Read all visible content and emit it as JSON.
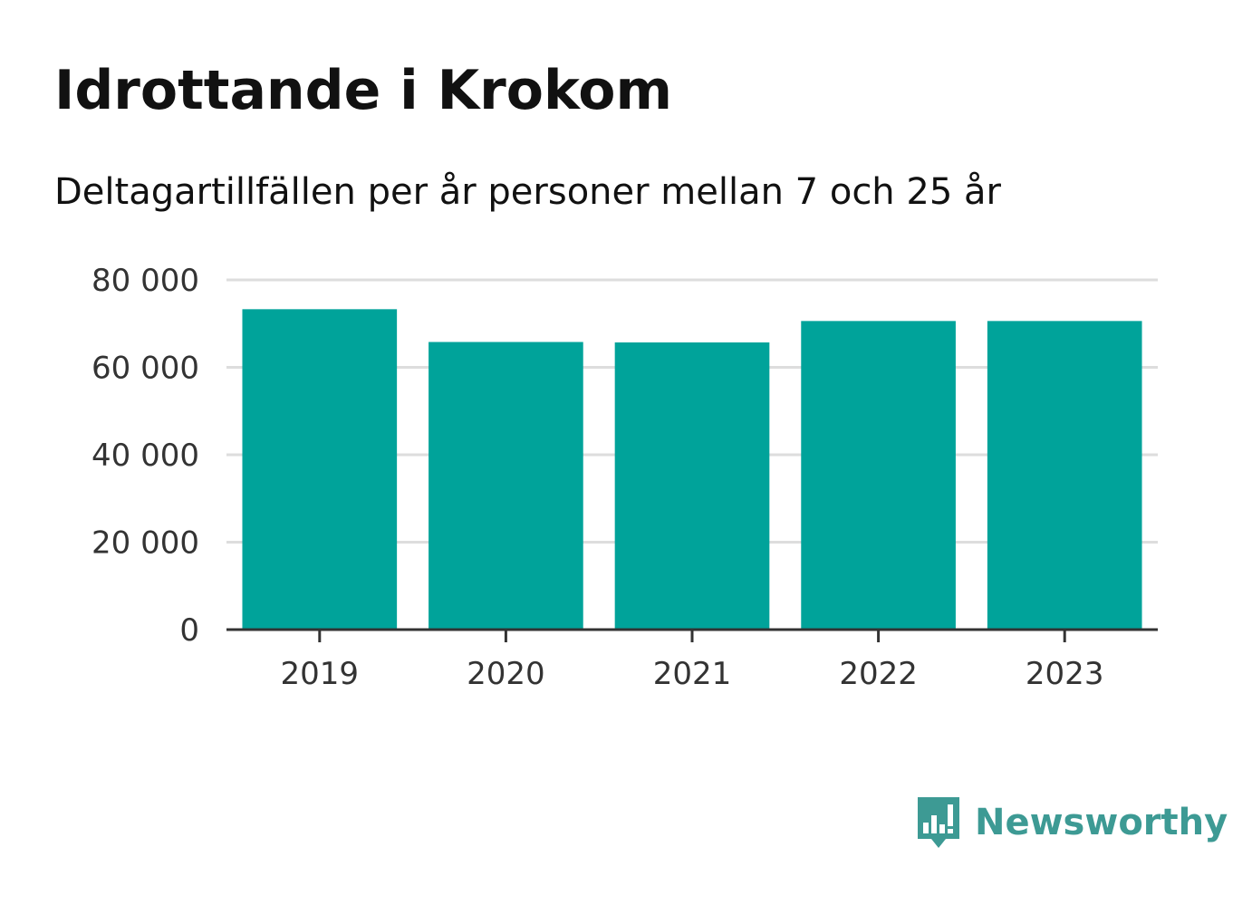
{
  "brand": {
    "name": "Newsworthy",
    "icon": "bar-chart-speech-bubble-icon",
    "color": "#3d9a94"
  },
  "chart_data": {
    "type": "bar",
    "title": "Idrottande i Krokom",
    "subtitle": "Deltagartillfällen per år personer mellan 7 och 25 år",
    "xlabel": "",
    "ylabel": "",
    "categories": [
      "2019",
      "2020",
      "2021",
      "2022",
      "2023"
    ],
    "values": [
      73300,
      65800,
      65700,
      70600,
      70600
    ],
    "ylim": [
      0,
      80000
    ],
    "yticks": [
      0,
      20000,
      40000,
      60000,
      80000
    ],
    "ytick_labels": [
      "0",
      "20 000",
      "40 000",
      "60 000",
      "80 000"
    ],
    "grid": true,
    "legend": "none",
    "bar_color": "#00a39a",
    "grid_color": "#dddddd",
    "axis_color": "#333333"
  }
}
